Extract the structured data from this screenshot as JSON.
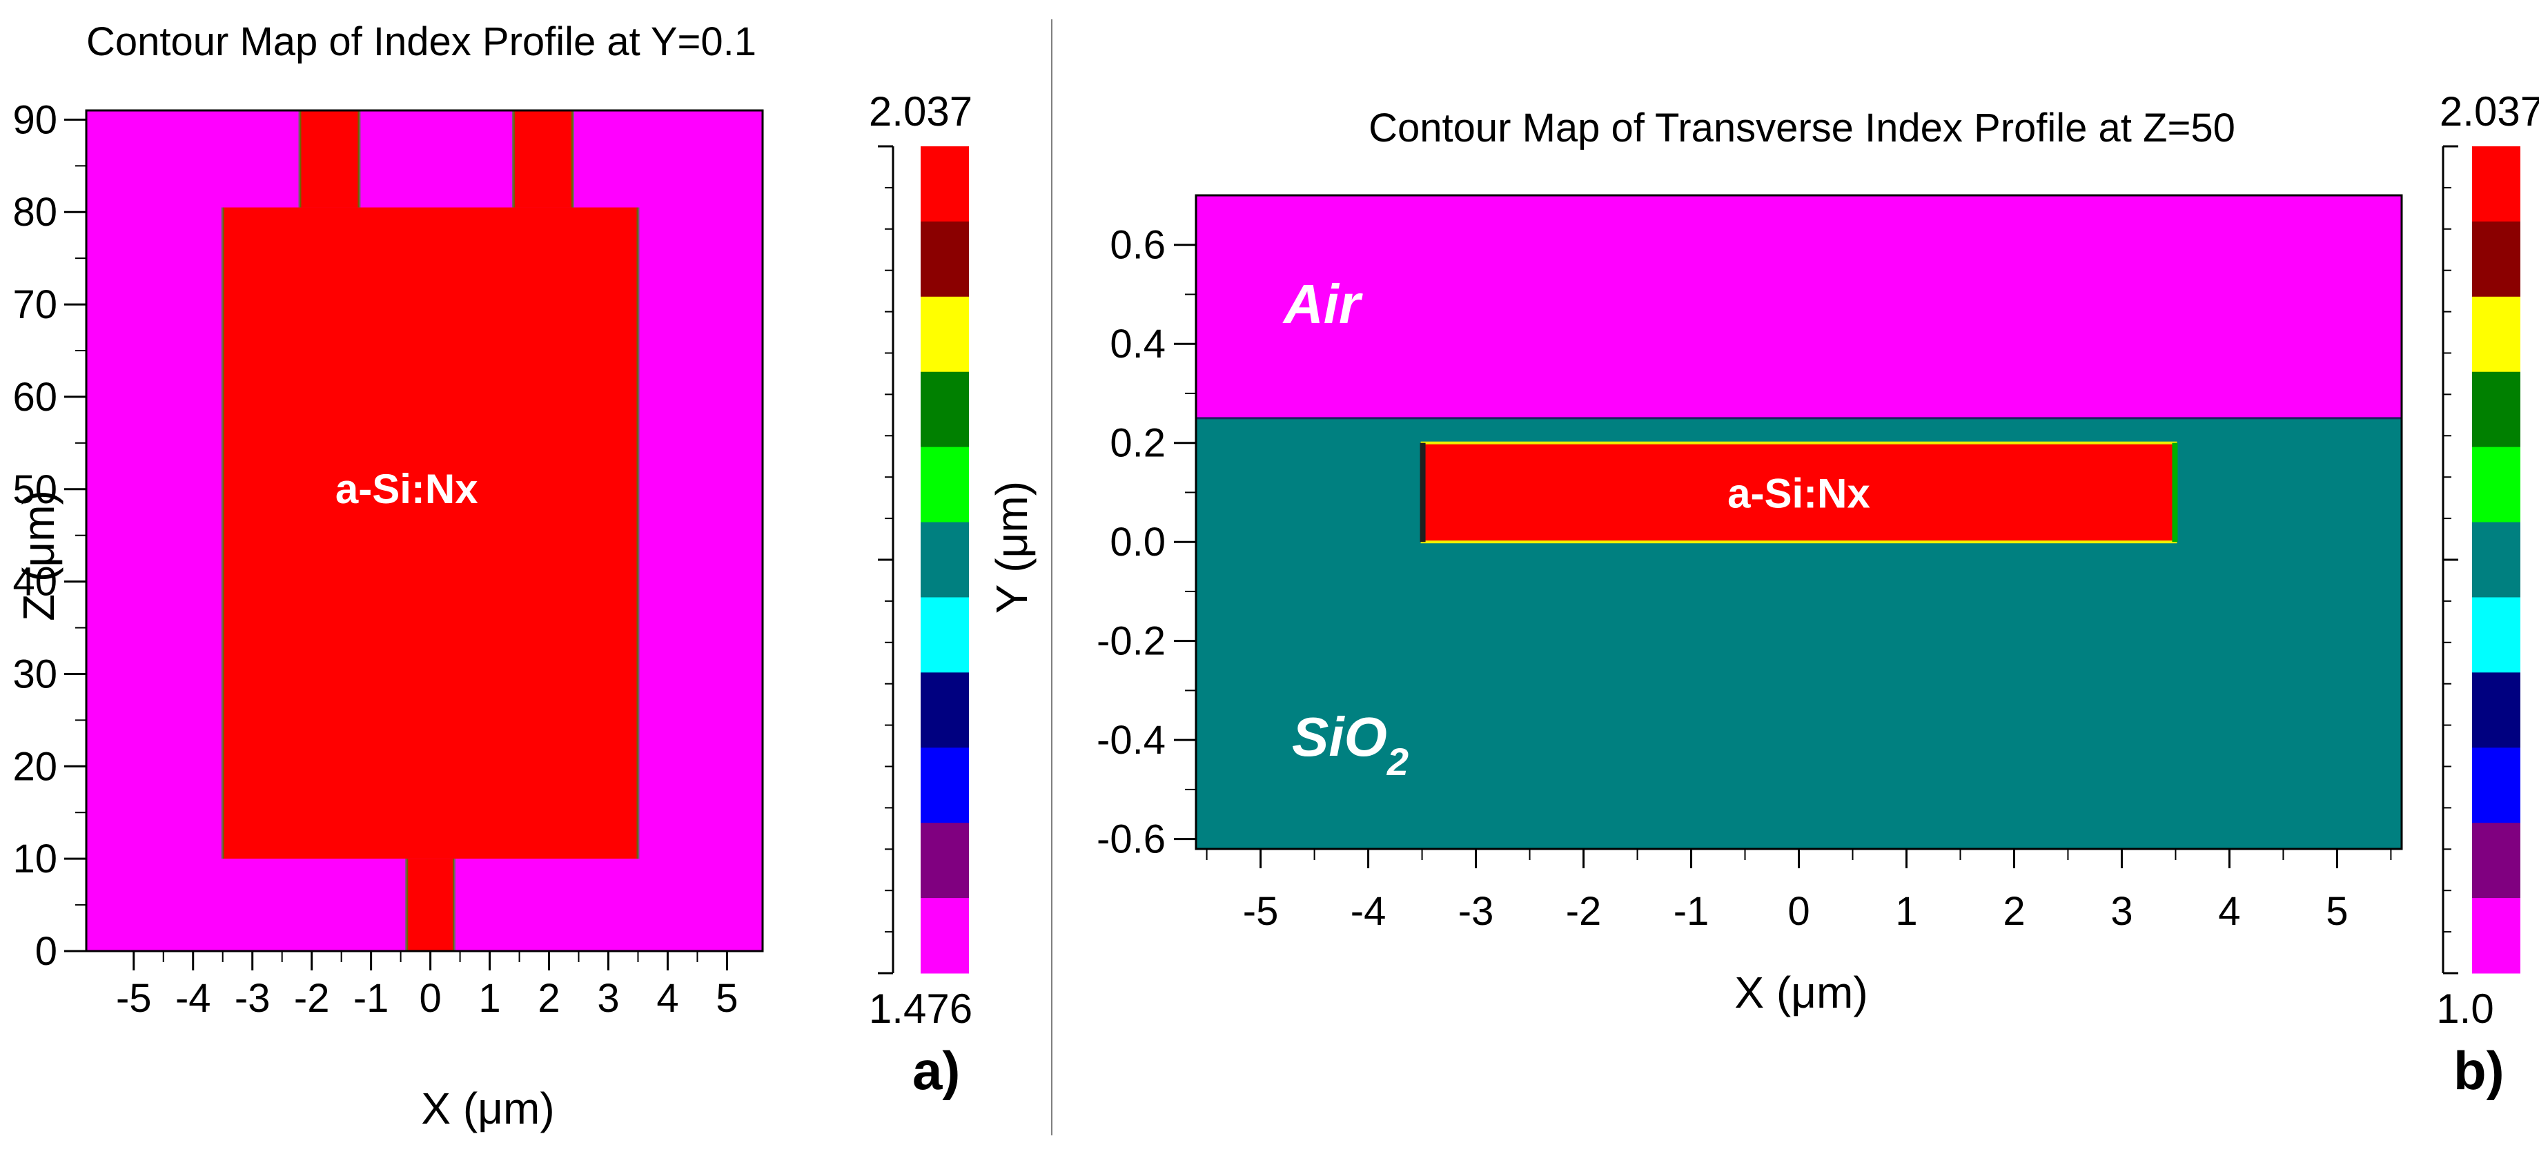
{
  "colors": {
    "magenta": "#ff00ff",
    "red": "#ff0000",
    "teal": "#008080",
    "green": "#00b000",
    "yellow": "#f0f000",
    "navy": "#000080",
    "dark": "#202020",
    "cyan": "#00ffff",
    "blue": "#0000ff",
    "purple": "#800080",
    "divider": "#808080"
  },
  "colorbar_colors": [
    "#ff0000",
    "#8b0000",
    "#ffff00",
    "#008000",
    "#00ff00",
    "#008080",
    "#00ffff",
    "#000080",
    "#0000ff",
    "#800080",
    "#ff00ff"
  ],
  "chart_data": [
    {
      "id": "a",
      "type": "heatmap",
      "title": "Contour Map of Index Profile at Y=0.1",
      "xlabel": "X (μm)",
      "ylabel": "Z (μm)",
      "xlim": [
        -5.8,
        5.6
      ],
      "ylim": [
        0,
        91
      ],
      "xticks": [
        -5,
        -4,
        -3,
        -2,
        -1,
        0,
        1,
        2,
        3,
        4,
        5
      ],
      "yticks": [
        0,
        10,
        20,
        30,
        40,
        50,
        60,
        70,
        80,
        90
      ],
      "xtick_labels": [
        "-5",
        "-4",
        "-3",
        "-2",
        "-1",
        "0",
        "1",
        "2",
        "3",
        "4",
        "5"
      ],
      "ytick_labels": [
        "0",
        "10",
        "20",
        "30",
        "40",
        "50",
        "60",
        "70",
        "80",
        "90"
      ],
      "background": "cladding",
      "regions": [
        {
          "name": "body",
          "x": [
            -3.5,
            3.5
          ],
          "y": [
            10,
            80.5
          ]
        },
        {
          "name": "input-waveguide",
          "x": [
            -0.4,
            0.4
          ],
          "y": [
            0,
            10
          ]
        },
        {
          "name": "output-waveguide-left",
          "x": [
            -2.2,
            -1.2
          ],
          "y": [
            80.5,
            91
          ]
        },
        {
          "name": "output-waveguide-right",
          "x": [
            1.4,
            2.4
          ],
          "y": [
            80.5,
            91
          ]
        }
      ],
      "label": "a-Si:Nx",
      "label_at": [
        -0.4,
        50
      ],
      "colorbar": {
        "max_label": "2.037",
        "min_label": "1.476",
        "max": 2.037,
        "min": 1.476
      },
      "panel_label": "a)"
    },
    {
      "id": "b",
      "type": "heatmap",
      "title": "Contour Map of Transverse Index Profile at Z=50",
      "xlabel": "X (μm)",
      "ylabel": "Y (μm)",
      "xlim": [
        -5.6,
        5.6
      ],
      "ylim": [
        -0.62,
        0.7
      ],
      "xticks": [
        -5,
        -4,
        -3,
        -2,
        -1,
        0,
        1,
        2,
        3,
        4,
        5
      ],
      "yticks": [
        0.6,
        0.4,
        0.2,
        0.0,
        -0.2,
        -0.4,
        -0.6
      ],
      "xtick_labels": [
        "-5",
        "-4",
        "-3",
        "-2",
        "-1",
        "0",
        "1",
        "2",
        "3",
        "4",
        "5"
      ],
      "ytick_labels": [
        "0.6",
        "0.4",
        "0.2",
        "0.0",
        "-0.2",
        "-0.4",
        "-0.6"
      ],
      "layers": [
        {
          "name": "Air",
          "y": [
            0.25,
            0.7
          ]
        },
        {
          "name": "SiO2",
          "y": [
            -0.62,
            0.25
          ]
        }
      ],
      "core": {
        "label": "a-Si:Nx",
        "x": [
          -3.5,
          3.5
        ],
        "y": [
          0.0,
          0.2
        ]
      },
      "region_labels": {
        "air": "Air",
        "sio2_base": "SiO",
        "sio2_sub": "2"
      },
      "colorbar": {
        "max_label": "2.037",
        "min_label": "1.0",
        "max": 2.037,
        "min": 1.0
      },
      "panel_label": "b)"
    }
  ]
}
